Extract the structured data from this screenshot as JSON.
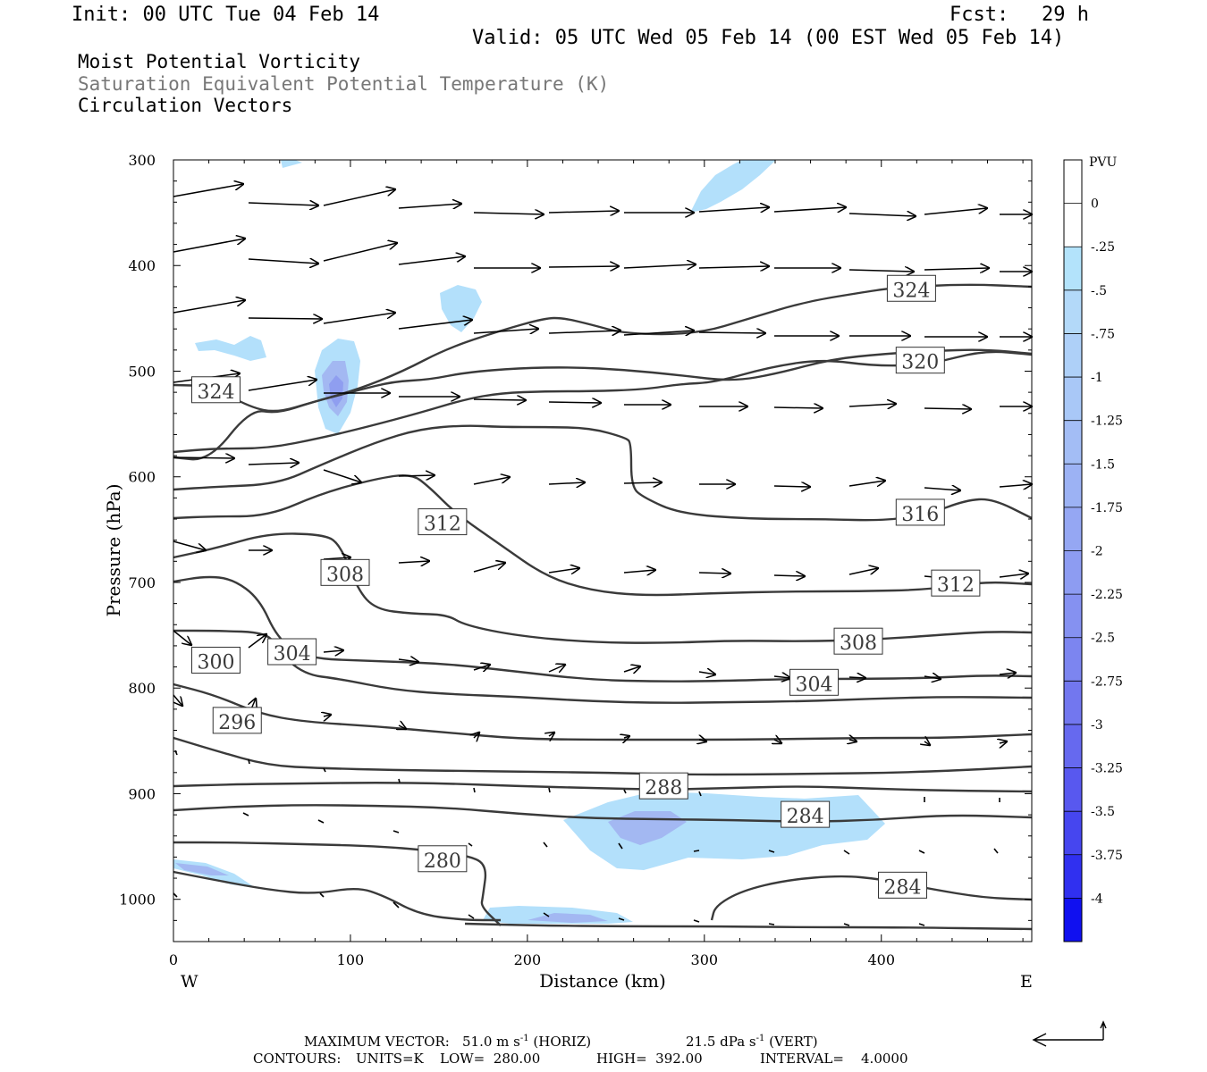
{
  "header": {
    "init": "Init: 00 UTC Tue 04 Feb 14",
    "fcst_label": "Fcst:",
    "fcst_value": "29 h",
    "valid": "Valid: 05 UTC Wed 05 Feb 14 (00 EST Wed 05 Feb 14)",
    "field1": "Moist Potential Vorticity",
    "field2": "Saturation Equivalent Potential Temperature (K)",
    "field3": "Circulation Vectors"
  },
  "footer": {
    "max_vector_label": "MAXIMUM VECTOR:",
    "max_vector_horiz": "51.0 m s",
    "max_vector_horiz_exp": "-1",
    "max_vector_horiz_tag": "(HORIZ)",
    "max_vector_vert": "21.5 dPa s",
    "max_vector_vert_exp": "-1",
    "max_vector_vert_tag": "(VERT)",
    "contours_label": "CONTOURS:",
    "units": "UNITS=K",
    "low": "LOW=  280.00",
    "high": "HIGH=  392.00",
    "interval": "INTERVAL=    4.0000"
  },
  "colors": {
    "contour": "#3a3a3a",
    "pv_light": "#b3e0fb",
    "pv_mid": "#a3b8f2",
    "pv_dark": "#8f9ef0"
  },
  "chart_data": {
    "type": "cross-section",
    "xlabel": "Distance (km)",
    "ylabel": "Pressure (hPa)",
    "xlim": [
      0,
      485
    ],
    "ylim": [
      300,
      1040
    ],
    "x_ticks": [
      0,
      100,
      200,
      300,
      400
    ],
    "y_ticks": [
      300,
      400,
      500,
      600,
      700,
      800,
      900,
      1000
    ],
    "left_end_label": "W",
    "right_end_label": "E",
    "colorbar": {
      "title": "PVU",
      "labels": [
        "0",
        "-.25",
        "-.5",
        "-.75",
        "-1",
        "-1.25",
        "-1.5",
        "-1.75",
        "-2",
        "-2.25",
        "-2.5",
        "-2.75",
        "-3",
        "-3.25",
        "-3.5",
        "-3.75",
        "-4"
      ],
      "colors": [
        "#ffffff",
        "#ffffff",
        "#b3e3fb",
        "#b3d9f9",
        "#aed0f8",
        "#a9c8f7",
        "#a3bdf5",
        "#9cb2f4",
        "#95a7f3",
        "#8d9cf2",
        "#8591f1",
        "#7c85f0",
        "#7277ef",
        "#6669ef",
        "#5858ef",
        "#4646ef",
        "#3030f0",
        "#1010f0"
      ]
    },
    "contour_labels": [
      {
        "text": "324",
        "x": 24,
        "p": 518
      },
      {
        "text": "324",
        "x": 417,
        "p": 422
      },
      {
        "text": "320",
        "x": 422,
        "p": 490
      },
      {
        "text": "316",
        "x": 422,
        "p": 634
      },
      {
        "text": "312",
        "x": 152,
        "p": 643
      },
      {
        "text": "312",
        "x": 442,
        "p": 701
      },
      {
        "text": "308",
        "x": 97,
        "p": 691
      },
      {
        "text": "308",
        "x": 387,
        "p": 756
      },
      {
        "text": "304",
        "x": 67,
        "p": 766
      },
      {
        "text": "304",
        "x": 362,
        "p": 795
      },
      {
        "text": "300",
        "x": 24,
        "p": 774
      },
      {
        "text": "296",
        "x": 36,
        "p": 831
      },
      {
        "text": "288",
        "x": 277,
        "p": 893
      },
      {
        "text": "284",
        "x": 357,
        "p": 920
      },
      {
        "text": "284",
        "x": 412,
        "p": 987
      },
      {
        "text": "280",
        "x": 152,
        "p": 962
      }
    ]
  }
}
